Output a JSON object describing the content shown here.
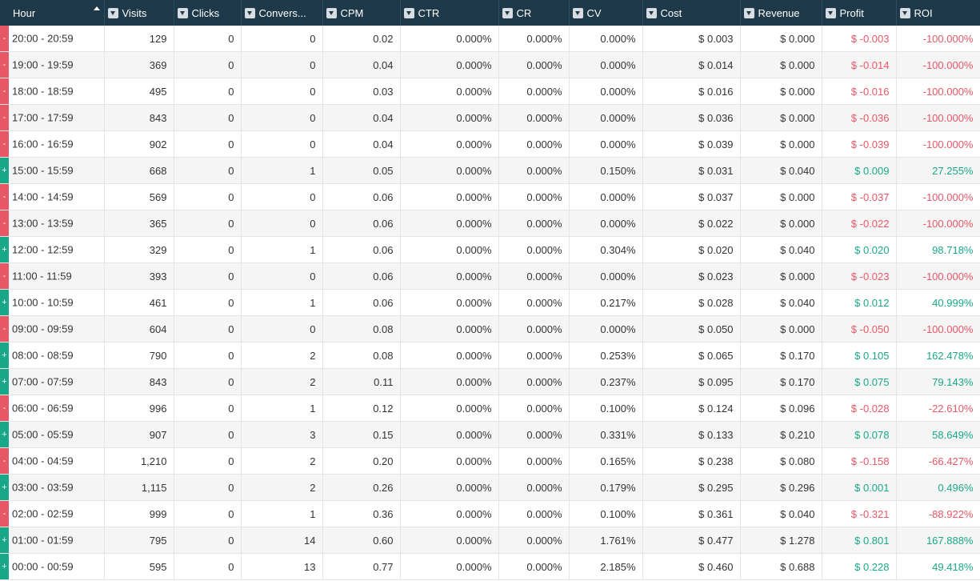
{
  "columns": [
    "Hour",
    "Visits",
    "Clicks",
    "Convers...",
    "CPM",
    "CTR",
    "CR",
    "CV",
    "Cost",
    "Revenue",
    "Profit",
    "ROI"
  ],
  "rows": [
    {
      "indicator": "-",
      "hour": "20:00 - 20:59",
      "visits": "129",
      "clicks": "0",
      "conversions": "0",
      "cpm": "0.02",
      "ctr": "0.000%",
      "cr": "0.000%",
      "cv": "0.000%",
      "cost": "$ 0.003",
      "revenue": "$ 0.000",
      "profit": "$ -0.003",
      "roi": "-100.000%"
    },
    {
      "indicator": "-",
      "hour": "19:00 - 19:59",
      "visits": "369",
      "clicks": "0",
      "conversions": "0",
      "cpm": "0.04",
      "ctr": "0.000%",
      "cr": "0.000%",
      "cv": "0.000%",
      "cost": "$ 0.014",
      "revenue": "$ 0.000",
      "profit": "$ -0.014",
      "roi": "-100.000%"
    },
    {
      "indicator": "-",
      "hour": "18:00 - 18:59",
      "visits": "495",
      "clicks": "0",
      "conversions": "0",
      "cpm": "0.03",
      "ctr": "0.000%",
      "cr": "0.000%",
      "cv": "0.000%",
      "cost": "$ 0.016",
      "revenue": "$ 0.000",
      "profit": "$ -0.016",
      "roi": "-100.000%"
    },
    {
      "indicator": "-",
      "hour": "17:00 - 17:59",
      "visits": "843",
      "clicks": "0",
      "conversions": "0",
      "cpm": "0.04",
      "ctr": "0.000%",
      "cr": "0.000%",
      "cv": "0.000%",
      "cost": "$ 0.036",
      "revenue": "$ 0.000",
      "profit": "$ -0.036",
      "roi": "-100.000%"
    },
    {
      "indicator": "-",
      "hour": "16:00 - 16:59",
      "visits": "902",
      "clicks": "0",
      "conversions": "0",
      "cpm": "0.04",
      "ctr": "0.000%",
      "cr": "0.000%",
      "cv": "0.000%",
      "cost": "$ 0.039",
      "revenue": "$ 0.000",
      "profit": "$ -0.039",
      "roi": "-100.000%"
    },
    {
      "indicator": "+",
      "hour": "15:00 - 15:59",
      "visits": "668",
      "clicks": "0",
      "conversions": "1",
      "cpm": "0.05",
      "ctr": "0.000%",
      "cr": "0.000%",
      "cv": "0.150%",
      "cost": "$ 0.031",
      "revenue": "$ 0.040",
      "profit": "$ 0.009",
      "roi": "27.255%"
    },
    {
      "indicator": "-",
      "hour": "14:00 - 14:59",
      "visits": "569",
      "clicks": "0",
      "conversions": "0",
      "cpm": "0.06",
      "ctr": "0.000%",
      "cr": "0.000%",
      "cv": "0.000%",
      "cost": "$ 0.037",
      "revenue": "$ 0.000",
      "profit": "$ -0.037",
      "roi": "-100.000%"
    },
    {
      "indicator": "-",
      "hour": "13:00 - 13:59",
      "visits": "365",
      "clicks": "0",
      "conversions": "0",
      "cpm": "0.06",
      "ctr": "0.000%",
      "cr": "0.000%",
      "cv": "0.000%",
      "cost": "$ 0.022",
      "revenue": "$ 0.000",
      "profit": "$ -0.022",
      "roi": "-100.000%"
    },
    {
      "indicator": "+",
      "hour": "12:00 - 12:59",
      "visits": "329",
      "clicks": "0",
      "conversions": "1",
      "cpm": "0.06",
      "ctr": "0.000%",
      "cr": "0.000%",
      "cv": "0.304%",
      "cost": "$ 0.020",
      "revenue": "$ 0.040",
      "profit": "$ 0.020",
      "roi": "98.718%"
    },
    {
      "indicator": "-",
      "hour": "11:00 - 11:59",
      "visits": "393",
      "clicks": "0",
      "conversions": "0",
      "cpm": "0.06",
      "ctr": "0.000%",
      "cr": "0.000%",
      "cv": "0.000%",
      "cost": "$ 0.023",
      "revenue": "$ 0.000",
      "profit": "$ -0.023",
      "roi": "-100.000%"
    },
    {
      "indicator": "+",
      "hour": "10:00 - 10:59",
      "visits": "461",
      "clicks": "0",
      "conversions": "1",
      "cpm": "0.06",
      "ctr": "0.000%",
      "cr": "0.000%",
      "cv": "0.217%",
      "cost": "$ 0.028",
      "revenue": "$ 0.040",
      "profit": "$ 0.012",
      "roi": "40.999%"
    },
    {
      "indicator": "-",
      "hour": "09:00 - 09:59",
      "visits": "604",
      "clicks": "0",
      "conversions": "0",
      "cpm": "0.08",
      "ctr": "0.000%",
      "cr": "0.000%",
      "cv": "0.000%",
      "cost": "$ 0.050",
      "revenue": "$ 0.000",
      "profit": "$ -0.050",
      "roi": "-100.000%"
    },
    {
      "indicator": "+",
      "hour": "08:00 - 08:59",
      "visits": "790",
      "clicks": "0",
      "conversions": "2",
      "cpm": "0.08",
      "ctr": "0.000%",
      "cr": "0.000%",
      "cv": "0.253%",
      "cost": "$ 0.065",
      "revenue": "$ 0.170",
      "profit": "$ 0.105",
      "roi": "162.478%"
    },
    {
      "indicator": "+",
      "hour": "07:00 - 07:59",
      "visits": "843",
      "clicks": "0",
      "conversions": "2",
      "cpm": "0.11",
      "ctr": "0.000%",
      "cr": "0.000%",
      "cv": "0.237%",
      "cost": "$ 0.095",
      "revenue": "$ 0.170",
      "profit": "$ 0.075",
      "roi": "79.143%"
    },
    {
      "indicator": "-",
      "hour": "06:00 - 06:59",
      "visits": "996",
      "clicks": "0",
      "conversions": "1",
      "cpm": "0.12",
      "ctr": "0.000%",
      "cr": "0.000%",
      "cv": "0.100%",
      "cost": "$ 0.124",
      "revenue": "$ 0.096",
      "profit": "$ -0.028",
      "roi": "-22.610%"
    },
    {
      "indicator": "+",
      "hour": "05:00 - 05:59",
      "visits": "907",
      "clicks": "0",
      "conversions": "3",
      "cpm": "0.15",
      "ctr": "0.000%",
      "cr": "0.000%",
      "cv": "0.331%",
      "cost": "$ 0.133",
      "revenue": "$ 0.210",
      "profit": "$ 0.078",
      "roi": "58.649%"
    },
    {
      "indicator": "-",
      "hour": "04:00 - 04:59",
      "visits": "1,210",
      "clicks": "0",
      "conversions": "2",
      "cpm": "0.20",
      "ctr": "0.000%",
      "cr": "0.000%",
      "cv": "0.165%",
      "cost": "$ 0.238",
      "revenue": "$ 0.080",
      "profit": "$ -0.158",
      "roi": "-66.427%"
    },
    {
      "indicator": "+",
      "hour": "03:00 - 03:59",
      "visits": "1,115",
      "clicks": "0",
      "conversions": "2",
      "cpm": "0.26",
      "ctr": "0.000%",
      "cr": "0.000%",
      "cv": "0.179%",
      "cost": "$ 0.295",
      "revenue": "$ 0.296",
      "profit": "$ 0.001",
      "roi": "0.496%"
    },
    {
      "indicator": "-",
      "hour": "02:00 - 02:59",
      "visits": "999",
      "clicks": "0",
      "conversions": "1",
      "cpm": "0.36",
      "ctr": "0.000%",
      "cr": "0.000%",
      "cv": "0.100%",
      "cost": "$ 0.361",
      "revenue": "$ 0.040",
      "profit": "$ -0.321",
      "roi": "-88.922%"
    },
    {
      "indicator": "+",
      "hour": "01:00 - 01:59",
      "visits": "795",
      "clicks": "0",
      "conversions": "14",
      "cpm": "0.60",
      "ctr": "0.000%",
      "cr": "0.000%",
      "cv": "1.761%",
      "cost": "$ 0.477",
      "revenue": "$ 1.278",
      "profit": "$ 0.801",
      "roi": "167.888%"
    },
    {
      "indicator": "+",
      "hour": "00:00 - 00:59",
      "visits": "595",
      "clicks": "0",
      "conversions": "13",
      "cpm": "0.77",
      "ctr": "0.000%",
      "cr": "0.000%",
      "cv": "2.185%",
      "cost": "$ 0.460",
      "revenue": "$ 0.688",
      "profit": "$ 0.228",
      "roi": "49.418%"
    }
  ],
  "colors": {
    "header_bg": "#1e3a4a",
    "negative": "#e85766",
    "positive": "#19a887"
  }
}
